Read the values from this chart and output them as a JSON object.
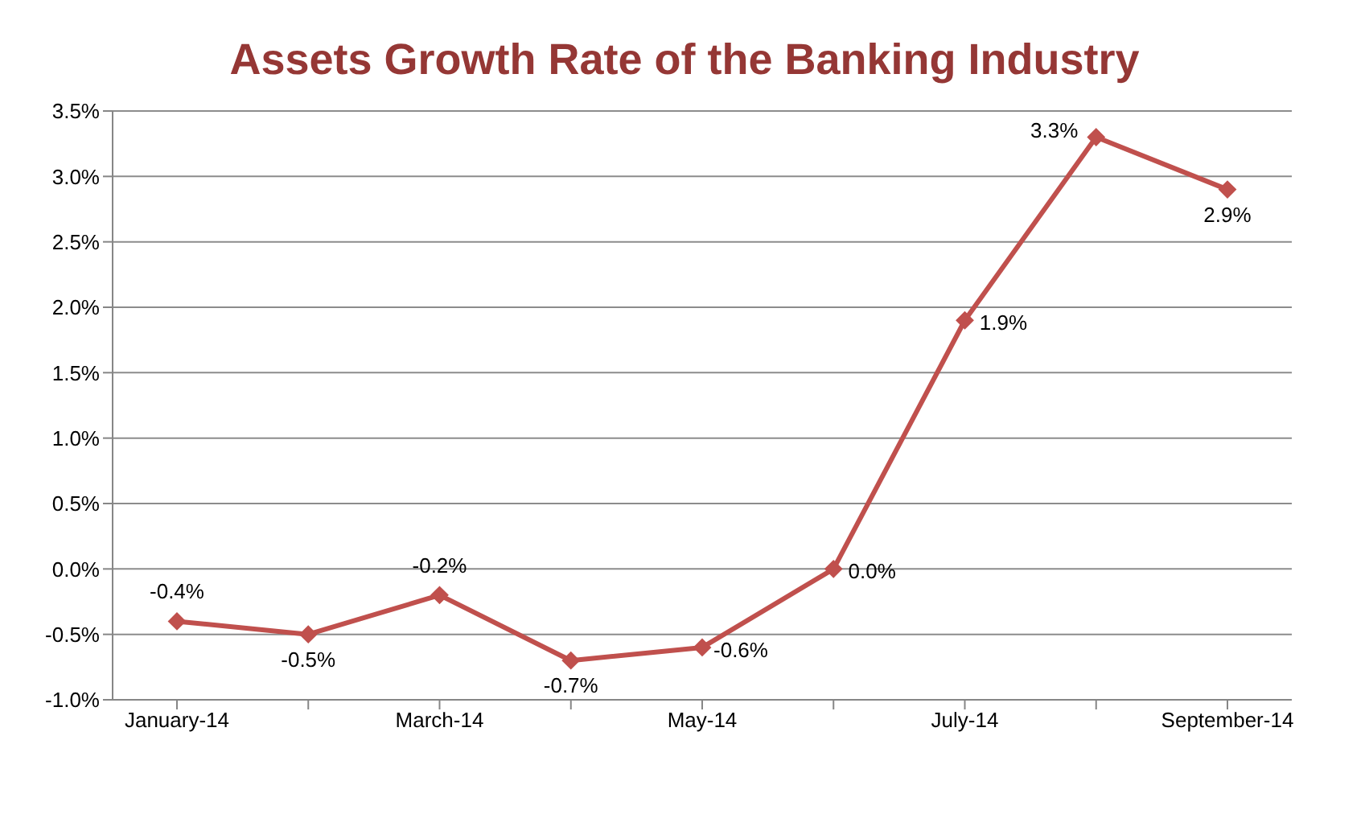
{
  "chart_data": {
    "type": "line",
    "title": "Assets Growth Rate of the Banking Industry",
    "categories": [
      "January-14",
      null,
      "March-14",
      null,
      "May-14",
      null,
      "July-14",
      null,
      "September-14"
    ],
    "series": [
      {
        "color": "#c0504d",
        "values": [
          -0.4,
          -0.5,
          -0.2,
          -0.7,
          -0.6,
          0.0,
          1.9,
          3.3,
          2.9
        ],
        "value_labels": [
          "-0.4%",
          "-0.5%",
          "-0.2%",
          "-0.7%",
          "-0.6%",
          "0.0%",
          "1.9%",
          "3.3%",
          "2.9%"
        ]
      }
    ],
    "ylim": [
      -1.0,
      3.5
    ],
    "yticks": [
      {
        "value": -1.0,
        "label": "-1.0%"
      },
      {
        "value": -0.5,
        "label": "-0.5%"
      },
      {
        "value": 0.0,
        "label": "0.0%"
      },
      {
        "value": 0.5,
        "label": "0.5%"
      },
      {
        "value": 1.0,
        "label": "1.0%"
      },
      {
        "value": 1.5,
        "label": "1.5%"
      },
      {
        "value": 2.0,
        "label": "2.0%"
      },
      {
        "value": 2.5,
        "label": "2.5%"
      },
      {
        "value": 3.0,
        "label": "3.0%"
      },
      {
        "value": 3.5,
        "label": "3.5%"
      }
    ],
    "grid": "y",
    "legend": false,
    "marker": "diamond",
    "line_style": "solid"
  }
}
